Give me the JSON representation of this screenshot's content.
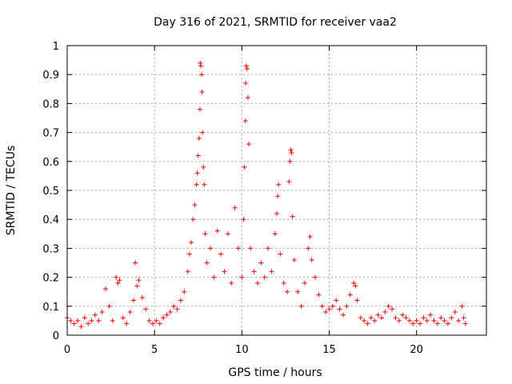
{
  "chart_data": {
    "type": "scatter",
    "title": "Day 316 of 2021, SRMTID for receiver vaa2",
    "xlabel": "GPS time / hours",
    "ylabel": "SRMTID / TECUs",
    "xlim": [
      0,
      24
    ],
    "ylim": [
      0,
      1
    ],
    "x_ticks": [
      0,
      5,
      10,
      15,
      20
    ],
    "x_tick_labels": [
      "0",
      "5",
      "10",
      "15",
      "20"
    ],
    "y_ticks": [
      0,
      0.1,
      0.2,
      0.3,
      0.4,
      0.5,
      0.6,
      0.7,
      0.8,
      0.9,
      1
    ],
    "y_tick_labels": [
      "0",
      "0.1",
      "0.2",
      "0.3",
      "0.4",
      "0.5",
      "0.6",
      "0.7",
      "0.8",
      "0.9",
      "1"
    ],
    "grid": true,
    "marker": "+",
    "color": "#ff0000",
    "series": [
      {
        "name": "vaa2",
        "points": [
          [
            0.0,
            0.06
          ],
          [
            0.2,
            0.05
          ],
          [
            0.4,
            0.04
          ],
          [
            0.6,
            0.05
          ],
          [
            0.8,
            0.03
          ],
          [
            1.0,
            0.06
          ],
          [
            1.2,
            0.04
          ],
          [
            1.4,
            0.05
          ],
          [
            1.6,
            0.07
          ],
          [
            1.8,
            0.05
          ],
          [
            2.0,
            0.08
          ],
          [
            2.2,
            0.16
          ],
          [
            2.4,
            0.1
          ],
          [
            2.6,
            0.05
          ],
          [
            2.8,
            0.2
          ],
          [
            2.9,
            0.18
          ],
          [
            3.0,
            0.19
          ],
          [
            3.2,
            0.06
          ],
          [
            3.4,
            0.04
          ],
          [
            3.6,
            0.08
          ],
          [
            3.8,
            0.12
          ],
          [
            3.9,
            0.25
          ],
          [
            4.0,
            0.17
          ],
          [
            4.1,
            0.19
          ],
          [
            4.3,
            0.13
          ],
          [
            4.5,
            0.09
          ],
          [
            4.7,
            0.05
          ],
          [
            4.9,
            0.04
          ],
          [
            5.1,
            0.05
          ],
          [
            5.3,
            0.04
          ],
          [
            5.5,
            0.06
          ],
          [
            5.7,
            0.07
          ],
          [
            5.9,
            0.08
          ],
          [
            6.1,
            0.1
          ],
          [
            6.3,
            0.09
          ],
          [
            6.5,
            0.12
          ],
          [
            6.7,
            0.15
          ],
          [
            6.9,
            0.22
          ],
          [
            7.0,
            0.28
          ],
          [
            7.1,
            0.32
          ],
          [
            7.2,
            0.4
          ],
          [
            7.3,
            0.45
          ],
          [
            7.4,
            0.52
          ],
          [
            7.45,
            0.56
          ],
          [
            7.5,
            0.62
          ],
          [
            7.55,
            0.68
          ],
          [
            7.6,
            0.78
          ],
          [
            7.62,
            0.94
          ],
          [
            7.65,
            0.93
          ],
          [
            7.7,
            0.9
          ],
          [
            7.72,
            0.84
          ],
          [
            7.75,
            0.7
          ],
          [
            7.8,
            0.58
          ],
          [
            7.85,
            0.52
          ],
          [
            7.9,
            0.35
          ],
          [
            8.0,
            0.25
          ],
          [
            8.2,
            0.3
          ],
          [
            8.4,
            0.2
          ],
          [
            8.6,
            0.36
          ],
          [
            8.8,
            0.28
          ],
          [
            9.0,
            0.22
          ],
          [
            9.2,
            0.35
          ],
          [
            9.4,
            0.18
          ],
          [
            9.6,
            0.44
          ],
          [
            9.8,
            0.3
          ],
          [
            10.0,
            0.2
          ],
          [
            10.1,
            0.4
          ],
          [
            10.15,
            0.58
          ],
          [
            10.2,
            0.74
          ],
          [
            10.22,
            0.87
          ],
          [
            10.25,
            0.93
          ],
          [
            10.3,
            0.92
          ],
          [
            10.35,
            0.82
          ],
          [
            10.4,
            0.66
          ],
          [
            10.5,
            0.3
          ],
          [
            10.7,
            0.22
          ],
          [
            10.9,
            0.18
          ],
          [
            11.1,
            0.25
          ],
          [
            11.3,
            0.2
          ],
          [
            11.5,
            0.3
          ],
          [
            11.7,
            0.22
          ],
          [
            11.9,
            0.35
          ],
          [
            12.0,
            0.42
          ],
          [
            12.05,
            0.48
          ],
          [
            12.1,
            0.52
          ],
          [
            12.2,
            0.28
          ],
          [
            12.4,
            0.18
          ],
          [
            12.6,
            0.15
          ],
          [
            12.7,
            0.53
          ],
          [
            12.75,
            0.6
          ],
          [
            12.8,
            0.64
          ],
          [
            12.85,
            0.63
          ],
          [
            12.9,
            0.41
          ],
          [
            13.0,
            0.26
          ],
          [
            13.2,
            0.15
          ],
          [
            13.4,
            0.1
          ],
          [
            13.6,
            0.18
          ],
          [
            13.8,
            0.3
          ],
          [
            13.9,
            0.34
          ],
          [
            14.0,
            0.26
          ],
          [
            14.2,
            0.2
          ],
          [
            14.4,
            0.14
          ],
          [
            14.6,
            0.1
          ],
          [
            14.8,
            0.08
          ],
          [
            15.0,
            0.09
          ],
          [
            15.2,
            0.1
          ],
          [
            15.4,
            0.12
          ],
          [
            15.6,
            0.09
          ],
          [
            15.8,
            0.07
          ],
          [
            16.0,
            0.1
          ],
          [
            16.2,
            0.14
          ],
          [
            16.4,
            0.18
          ],
          [
            16.5,
            0.17
          ],
          [
            16.6,
            0.12
          ],
          [
            16.8,
            0.06
          ],
          [
            17.0,
            0.05
          ],
          [
            17.2,
            0.04
          ],
          [
            17.4,
            0.06
          ],
          [
            17.6,
            0.05
          ],
          [
            17.8,
            0.07
          ],
          [
            18.0,
            0.06
          ],
          [
            18.2,
            0.08
          ],
          [
            18.4,
            0.1
          ],
          [
            18.6,
            0.09
          ],
          [
            18.8,
            0.06
          ],
          [
            19.0,
            0.05
          ],
          [
            19.2,
            0.07
          ],
          [
            19.4,
            0.06
          ],
          [
            19.6,
            0.05
          ],
          [
            19.8,
            0.04
          ],
          [
            20.0,
            0.05
          ],
          [
            20.2,
            0.04
          ],
          [
            20.4,
            0.06
          ],
          [
            20.6,
            0.05
          ],
          [
            20.8,
            0.07
          ],
          [
            21.0,
            0.05
          ],
          [
            21.2,
            0.04
          ],
          [
            21.4,
            0.06
          ],
          [
            21.6,
            0.05
          ],
          [
            21.8,
            0.04
          ],
          [
            22.0,
            0.06
          ],
          [
            22.2,
            0.08
          ],
          [
            22.4,
            0.05
          ],
          [
            22.6,
            0.1
          ],
          [
            22.7,
            0.06
          ],
          [
            22.8,
            0.04
          ]
        ]
      }
    ]
  }
}
